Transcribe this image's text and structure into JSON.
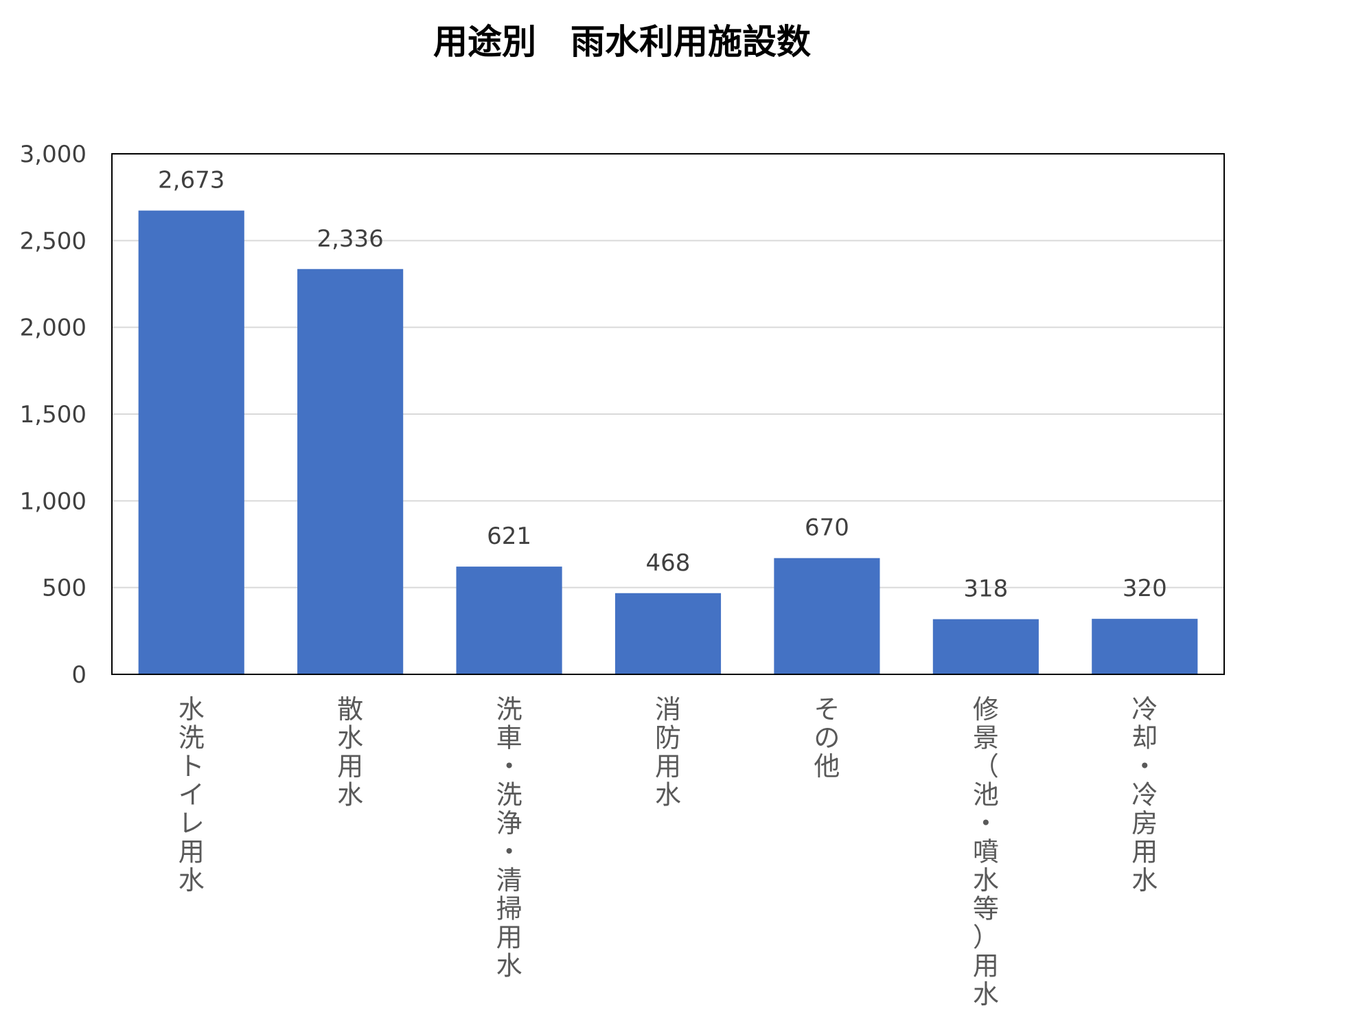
{
  "chart_data": {
    "type": "bar",
    "title": "用途別　雨水利用施設数",
    "categories": [
      "水洗トイレ用水",
      "散水用水",
      "洗車・洗浄・清掃用水",
      "消防用水",
      "その他",
      "修景（池・噴水等）用水",
      "冷却・冷房用水"
    ],
    "values": [
      2673,
      2336,
      621,
      468,
      670,
      318,
      320
    ],
    "value_labels": [
      "2,673",
      "2,336",
      "621",
      "468",
      "670",
      "318",
      "320"
    ],
    "ylim": [
      0,
      3000
    ],
    "yticks": [
      0,
      500,
      1000,
      1500,
      2000,
      2500,
      3000
    ],
    "ytick_labels": [
      "0",
      "500",
      "1,000",
      "1,500",
      "2,000",
      "2,500",
      "3,000"
    ],
    "grid": true,
    "legend": "none",
    "colors": {
      "bar": "#4472C4",
      "grid": "#D9D9D9",
      "frame": "#000000"
    }
  }
}
